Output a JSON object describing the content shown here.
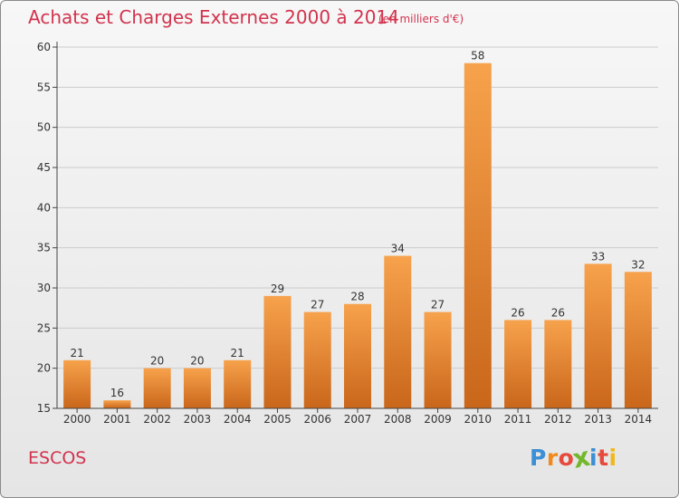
{
  "header": {
    "title": "Achats et Charges Externes 2000 à 2014",
    "subtitle": "(en milliers d'€)"
  },
  "footer": {
    "place": "ESCOS",
    "logo_letters": [
      "P",
      "r",
      "o",
      "x",
      "i",
      "t",
      "i"
    ],
    "logo_colors": [
      "#3b8fd6",
      "#f08a1c",
      "#e64a3c",
      "#73b82c",
      "#3b8fd6",
      "#e64a3c",
      "#f0b81c"
    ]
  },
  "colors": {
    "bar_light": "#f7a24c",
    "bar_dark": "#c9661a",
    "axis": "#444444",
    "grid": "#cccccc",
    "text": "#333333"
  },
  "chart_data": {
    "type": "bar",
    "categories": [
      "2000",
      "2001",
      "2002",
      "2003",
      "2004",
      "2005",
      "2006",
      "2007",
      "2008",
      "2009",
      "2010",
      "2011",
      "2012",
      "2013",
      "2014"
    ],
    "values": [
      21,
      16,
      20,
      20,
      21,
      29,
      27,
      28,
      34,
      27,
      58,
      26,
      26,
      33,
      32
    ],
    "title": "Achats et Charges Externes 2000 à 2014",
    "ylim": [
      15,
      60
    ],
    "yticks": [
      15,
      20,
      25,
      30,
      35,
      40,
      45,
      50,
      55,
      60
    ],
    "grid": true
  }
}
